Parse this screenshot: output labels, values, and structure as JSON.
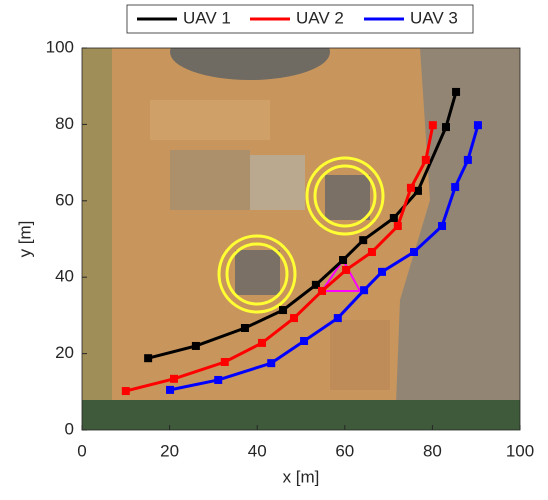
{
  "chart_data": {
    "type": "line",
    "xlabel": "x [m]",
    "ylabel": "y [m]",
    "xlim": [
      0,
      100
    ],
    "ylim": [
      0,
      100
    ],
    "xticks": [
      0,
      20,
      40,
      60,
      80,
      100
    ],
    "yticks": [
      0,
      20,
      40,
      60,
      80,
      100
    ],
    "legend": "top",
    "series": [
      {
        "name": "UAV 1",
        "color": "#000000",
        "x": [
          15.1,
          26.0,
          37.2,
          45.9,
          53.4,
          59.6,
          64.2,
          71.2,
          76.7,
          83.1,
          85.4
        ],
        "values": [
          18.8,
          22.0,
          26.7,
          31.4,
          38.0,
          44.5,
          49.7,
          55.5,
          62.6,
          79.3,
          88.5
        ]
      },
      {
        "name": "UAV 2",
        "color": "#ff0000",
        "x": [
          10.0,
          21.0,
          32.6,
          41.1,
          48.4,
          54.8,
          60.3,
          66.2,
          72.1,
          75.1,
          78.5,
          80.1
        ],
        "values": [
          10.2,
          13.4,
          17.8,
          22.8,
          29.3,
          36.4,
          41.9,
          46.6,
          53.4,
          63.4,
          70.7,
          79.8
        ]
      },
      {
        "name": "UAV 3",
        "color": "#0000ff",
        "x": [
          20.1,
          31.1,
          43.2,
          50.7,
          58.4,
          64.4,
          68.5,
          75.8,
          82.2,
          85.2,
          88.1,
          90.4
        ],
        "values": [
          10.5,
          13.1,
          17.5,
          23.3,
          29.3,
          36.6,
          41.4,
          46.6,
          53.4,
          63.6,
          70.7,
          79.8
        ]
      }
    ]
  }
}
